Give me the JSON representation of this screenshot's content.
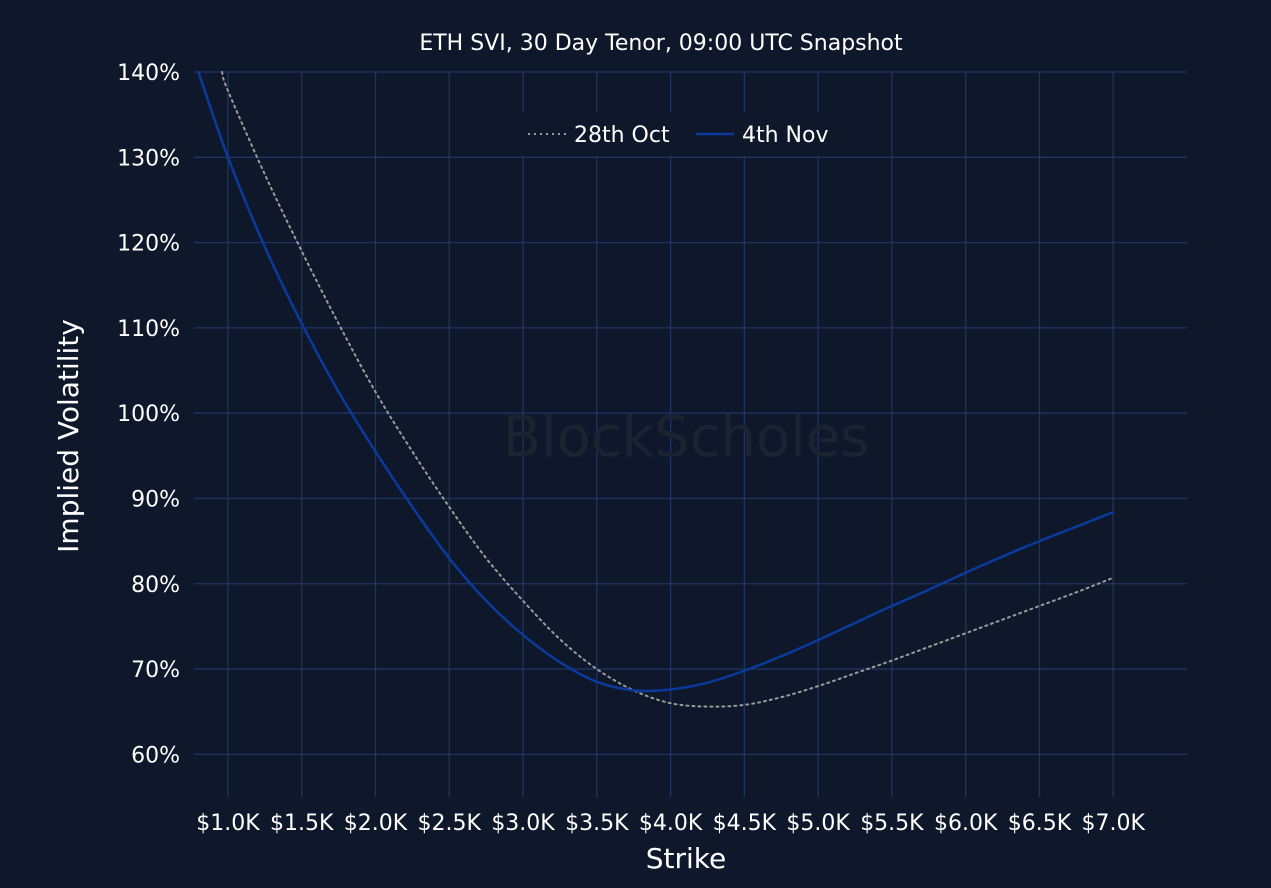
{
  "chart_data": {
    "type": "line",
    "title": "ETH SVI, 30 Day Tenor, 09:00 UTC Snapshot",
    "xlabel": "Strike",
    "ylabel": "Implied Volatility",
    "watermark": "BlockScholes",
    "x_tick_labels": [
      "$1.0K",
      "$1.5K",
      "$2.0K",
      "$2.5K",
      "$3.0K",
      "$3.5K",
      "$4.0K",
      "$4.5K",
      "$5.0K",
      "$5.5K",
      "$6.0K",
      "$6.5K",
      "$7.0K"
    ],
    "x_tick_values": [
      1000,
      1500,
      2000,
      2500,
      3000,
      3500,
      4000,
      4500,
      5000,
      5500,
      6000,
      6500,
      7000
    ],
    "y_tick_labels": [
      "60%",
      "70%",
      "80%",
      "90%",
      "100%",
      "110%",
      "120%",
      "130%",
      "140%"
    ],
    "y_tick_values": [
      60,
      70,
      80,
      90,
      100,
      110,
      120,
      130,
      140
    ],
    "xlim": [
      770,
      7500
    ],
    "ylim": [
      55,
      140
    ],
    "grid": true,
    "legend_position": "top-center",
    "series": [
      {
        "name": "28th Oct",
        "style": "dotted",
        "color": "#9a9a9a",
        "x": [
          960,
          1000,
          1250,
          1500,
          1750,
          2000,
          2250,
          2500,
          2750,
          3000,
          3250,
          3500,
          3750,
          4000,
          4250,
          4500,
          4750,
          5000,
          5250,
          5500,
          5750,
          6000,
          6250,
          6500,
          6750,
          7000
        ],
        "y": [
          140,
          137.8,
          128,
          119,
          110.5,
          102.5,
          95.5,
          89,
          83,
          78,
          73.5,
          70,
          67.5,
          66,
          65.6,
          65.8,
          66.7,
          68,
          69.5,
          71,
          72.6,
          74.2,
          75.8,
          77.4,
          79,
          80.7
        ]
      },
      {
        "name": "4th Nov",
        "style": "solid",
        "color": "#0a3a9c",
        "x": [
          800,
          1000,
          1250,
          1500,
          1750,
          2000,
          2250,
          2500,
          2750,
          3000,
          3250,
          3500,
          3750,
          4000,
          4250,
          4500,
          4750,
          5000,
          5250,
          5500,
          5750,
          6000,
          6250,
          6500,
          6750,
          7000
        ],
        "y": [
          140,
          130,
          119.5,
          110.5,
          102.5,
          95.5,
          89,
          83,
          78,
          74,
          70.8,
          68.5,
          67.5,
          67.6,
          68.4,
          69.8,
          71.5,
          73.4,
          75.4,
          77.4,
          79.3,
          81.3,
          83.2,
          85,
          86.7,
          88.4
        ]
      }
    ]
  }
}
